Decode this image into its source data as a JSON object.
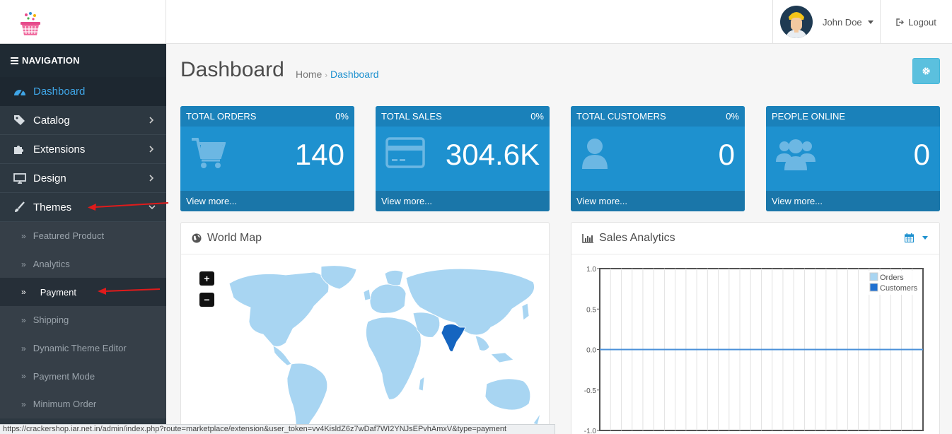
{
  "header": {
    "user_name": "John Doe",
    "logout_label": "Logout"
  },
  "sidebar": {
    "heading": "NAVIGATION",
    "items": [
      {
        "label": "Dashboard",
        "icon": "dashboard-icon",
        "active": true
      },
      {
        "label": "Catalog",
        "icon": "tag-icon"
      },
      {
        "label": "Extensions",
        "icon": "puzzle-icon"
      },
      {
        "label": "Design",
        "icon": "monitor-icon"
      },
      {
        "label": "Themes",
        "icon": "brush-icon",
        "expanded": true
      }
    ],
    "sub_items": [
      {
        "label": "Featured Product"
      },
      {
        "label": "Analytics"
      },
      {
        "label": "Payment",
        "current": true
      },
      {
        "label": "Shipping"
      },
      {
        "label": "Dynamic Theme Editor"
      },
      {
        "label": "Payment Mode"
      },
      {
        "label": "Minimum Order"
      }
    ]
  },
  "page": {
    "title": "Dashboard",
    "breadcrumb": {
      "home": "Home",
      "current": "Dashboard"
    }
  },
  "tiles": [
    {
      "title": "TOTAL ORDERS",
      "percent": "0%",
      "value": "140",
      "footer": "View more...",
      "icon": "cart-icon"
    },
    {
      "title": "TOTAL SALES",
      "percent": "0%",
      "value": "304.6K",
      "footer": "View more...",
      "icon": "credit-card-icon"
    },
    {
      "title": "TOTAL CUSTOMERS",
      "percent": "0%",
      "value": "0",
      "footer": "View more...",
      "icon": "user-icon"
    },
    {
      "title": "PEOPLE ONLINE",
      "percent": "",
      "value": "0",
      "footer": "View more...",
      "icon": "users-icon"
    }
  ],
  "world_map": {
    "title": "World Map",
    "zoom_in": "+",
    "zoom_out": "−",
    "highlight_color": "#1565c0",
    "land_color": "#a8d5f2"
  },
  "sales_analytics": {
    "title": "Sales Analytics"
  },
  "chart_data": {
    "type": "line",
    "ylim": [
      -1.0,
      1.0
    ],
    "y_ticks": [
      "1.0",
      "0.5",
      "0.0",
      "-0.5",
      "-1.0"
    ],
    "grid": true,
    "legend": "top-right",
    "series": [
      {
        "name": "Orders",
        "color": "#a8d5f2",
        "values": [
          0,
          0,
          0,
          0,
          0,
          0,
          0,
          0,
          0,
          0,
          0,
          0,
          0,
          0,
          0,
          0,
          0,
          0,
          0,
          0,
          0,
          0,
          0,
          0,
          0,
          0,
          0,
          0,
          0,
          0
        ]
      },
      {
        "name": "Customers",
        "color": "#1e6fd0",
        "values": [
          0,
          0,
          0,
          0,
          0,
          0,
          0,
          0,
          0,
          0,
          0,
          0,
          0,
          0,
          0,
          0,
          0,
          0,
          0,
          0,
          0,
          0,
          0,
          0,
          0,
          0,
          0,
          0,
          0,
          0
        ]
      }
    ]
  },
  "status_url": "https://crackershop.iar.net.in/admin/index.php?route=marketplace/extension&user_token=vv4KisldZ6z7wDaf7WI2YNJsEPvhAmxV&type=payment"
}
